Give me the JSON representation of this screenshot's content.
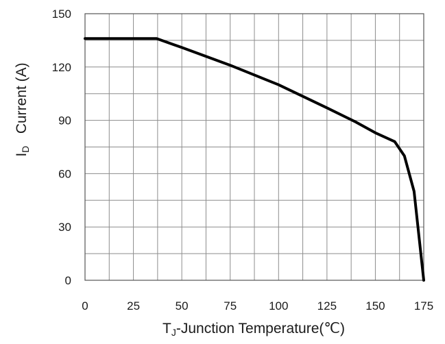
{
  "chart_data": {
    "type": "line",
    "xlabel_main": "T",
    "xlabel_sub": "J",
    "xlabel_rest": "-Junction Temperature(℃)",
    "ylabel_main": "I",
    "ylabel_sub": "D",
    "ylabel_rest": "   Current (A)",
    "xlim": [
      0,
      175
    ],
    "ylim": [
      0,
      150
    ],
    "x_ticks": [
      "0",
      "25",
      "50",
      "75",
      "100",
      "125",
      "150",
      "175"
    ],
    "y_ticks": [
      "0",
      "30",
      "60",
      "90",
      "120",
      "150"
    ],
    "grid": true,
    "series": [
      {
        "x": [
          0,
          37,
          50,
          75,
          100,
          125,
          140,
          150,
          160,
          165,
          170,
          175
        ],
        "y": [
          136,
          136,
          131,
          121,
          110,
          97,
          89,
          83,
          78,
          70,
          50,
          0
        ]
      }
    ]
  }
}
